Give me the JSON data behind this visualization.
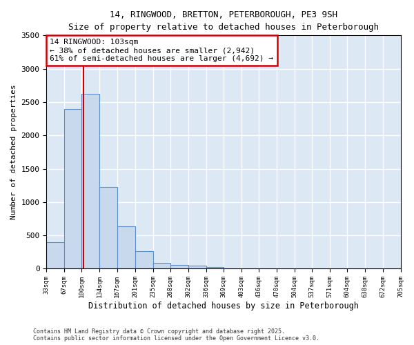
{
  "title_line1": "14, RINGWOOD, BRETTON, PETERBOROUGH, PE3 9SH",
  "title_line2": "Size of property relative to detached houses in Peterborough",
  "xlabel": "Distribution of detached houses by size in Peterborough",
  "ylabel": "Number of detached properties",
  "bin_edges": [
    33,
    67,
    100,
    134,
    167,
    201,
    235,
    268,
    302,
    336,
    369,
    403,
    436,
    470,
    504,
    537,
    571,
    604,
    638,
    672,
    705
  ],
  "bar_heights": [
    400,
    2400,
    2620,
    1230,
    640,
    260,
    90,
    55,
    50,
    30,
    0,
    0,
    0,
    0,
    0,
    0,
    0,
    0,
    0,
    0
  ],
  "bar_color": "#c8d9ee",
  "bar_edge_color": "#5b8fc9",
  "property_size": 103,
  "red_line_color": "#cc0000",
  "annotation_text": "14 RINGWOOD: 103sqm\n← 38% of detached houses are smaller (2,942)\n61% of semi-detached houses are larger (4,692) →",
  "annotation_box_color": "#ffffff",
  "annotation_border_color": "#cc0000",
  "ylim": [
    0,
    3500
  ],
  "yticks": [
    0,
    500,
    1000,
    1500,
    2000,
    2500,
    3000,
    3500
  ],
  "background_color": "#dde8f5",
  "grid_color": "#ffffff",
  "fig_background": "#ffffff",
  "footer_line1": "Contains HM Land Registry data © Crown copyright and database right 2025.",
  "footer_line2": "Contains public sector information licensed under the Open Government Licence v3.0."
}
